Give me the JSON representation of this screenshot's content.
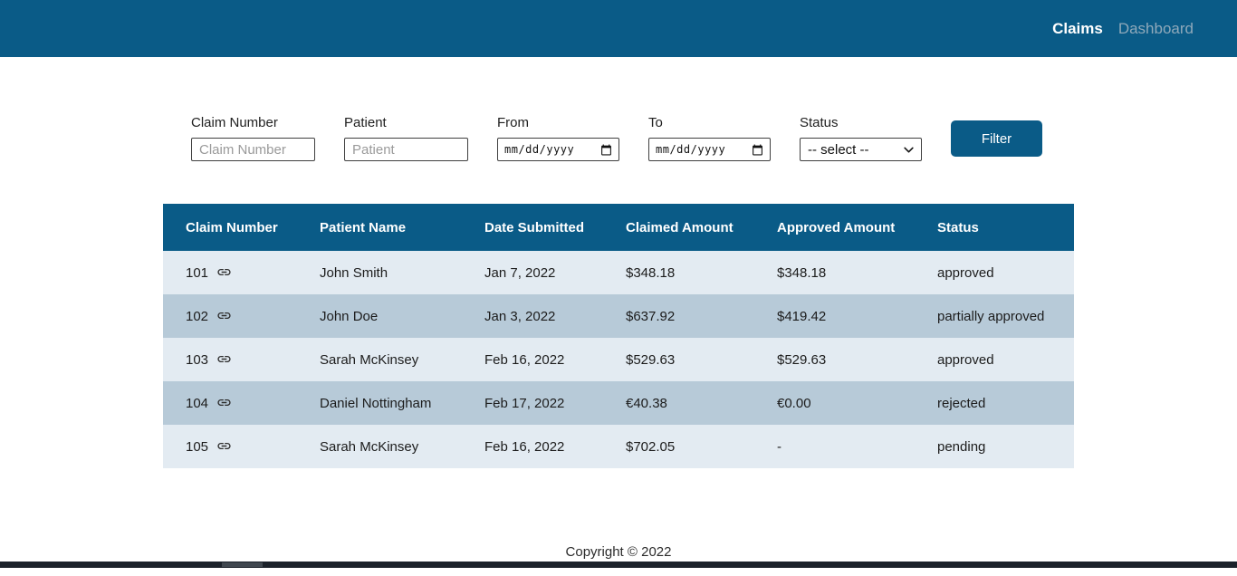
{
  "colors": {
    "header_bg": "#0a5b87",
    "table_header_bg": "#0a5b87",
    "row_light": "#e3ebf2",
    "row_dark": "#b7cad8",
    "accent": "#0a5b87"
  },
  "nav": {
    "items": [
      {
        "label": "Claims",
        "active": true
      },
      {
        "label": "Dashboard",
        "active": false
      }
    ]
  },
  "filter": {
    "claim_number": {
      "label": "Claim Number",
      "placeholder": "Claim Number",
      "value": ""
    },
    "patient": {
      "label": "Patient",
      "placeholder": "Patient",
      "value": ""
    },
    "from": {
      "label": "From",
      "value": "mm/dd/yyyy"
    },
    "to": {
      "label": "To",
      "value": "mm/dd/yyyy"
    },
    "status": {
      "label": "Status",
      "selected": "-- select --"
    },
    "button_label": "Filter"
  },
  "icons": {
    "link": "link-icon",
    "calendar": "calendar-icon",
    "chevron": "chevron-down-icon"
  },
  "table": {
    "headers": [
      "Claim Number",
      "Patient Name",
      "Date Submitted",
      "Claimed Amount",
      "Approved Amount",
      "Status"
    ],
    "rows": [
      {
        "claim_number": "101",
        "patient_name": "John Smith",
        "date_submitted": "Jan 7, 2022",
        "claimed_amount": "$348.18",
        "approved_amount": "$348.18",
        "status": "approved"
      },
      {
        "claim_number": "102",
        "patient_name": "John Doe",
        "date_submitted": "Jan 3, 2022",
        "claimed_amount": "$637.92",
        "approved_amount": "$419.42",
        "status": "partially approved"
      },
      {
        "claim_number": "103",
        "patient_name": "Sarah McKinsey",
        "date_submitted": "Feb 16, 2022",
        "claimed_amount": "$529.63",
        "approved_amount": "$529.63",
        "status": "approved"
      },
      {
        "claim_number": "104",
        "patient_name": "Daniel Nottingham",
        "date_submitted": "Feb 17, 2022",
        "claimed_amount": "€40.38",
        "approved_amount": "€0.00",
        "status": "rejected"
      },
      {
        "claim_number": "105",
        "patient_name": "Sarah McKinsey",
        "date_submitted": "Feb 16, 2022",
        "claimed_amount": "$702.05",
        "approved_amount": "-",
        "status": "pending"
      }
    ]
  },
  "footer": {
    "copyright": "Copyright © 2022"
  }
}
